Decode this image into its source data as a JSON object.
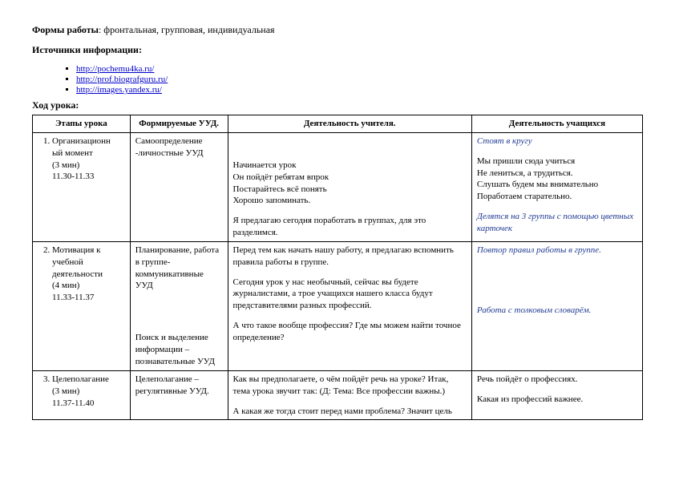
{
  "header": {
    "forms_label": "Формы работы",
    "forms_value": ": фронтальная, групповая, индивидуальная",
    "sources_label": "Источники информации:",
    "links": [
      "http://pochemu4ka.ru/",
      "http://prof.biografguru.ru/",
      "http://images.yandex.ru/"
    ],
    "lesson_flow": "Ход урока:"
  },
  "table": {
    "headers": {
      "stage": "Этапы урока",
      "uud": "Формируемые УУД.",
      "teacher": "Деятельность учителя.",
      "students": "Деятельность учащихся"
    },
    "rows": [
      {
        "num": "1.",
        "stage_lines": [
          "Организационн",
          "ый момент",
          "(3 мин)",
          "11.30-11.33"
        ],
        "uud": "Самоопределение -личностные УУД",
        "teacher_block1": [
          "Начинается урок",
          "Он пойдёт ребятам впрок",
          "Постарайтесь  всё понять",
          "Хорошо запоминать."
        ],
        "teacher_block2": "Я предлагаю сегодня  поработать в группах, для это разделимся.",
        "students_italic1": "Стоят в кругу",
        "students_plain": [
          "Мы пришли сюда учиться",
          " Не лениться, а трудиться.",
          " Слушать будем мы   внимательно",
          " Поработаем   старательно."
        ],
        "students_italic2": "Делятся на 3 группы с помощью цветных карточек"
      },
      {
        "num": "2.",
        "stage_lines": [
          "Мотивация к",
          "учебной",
          "деятельности",
          "(4 мин)",
          "11.33-11.37"
        ],
        "uud_block1": "Планирование, работа в группе- коммуникативные УУД",
        "uud_block2": "Поиск и выделение информации – познавательные УУД",
        "teacher_block1": "Перед тем как начать нашу работу, я предлагаю вспомнить правила работы в группе.",
        "teacher_block2": "Сегодня урок у нас необычный, сейчас вы будете журналистами, а трое учащихся нашего класса будут представителями разных профессий.",
        "teacher_block3": "А что такое вообще профессия? Где мы можем найти точное определение?",
        "students_italic1": "Повтор правил работы в группе.",
        "students_italic2": "Работа с толковым словарём."
      },
      {
        "num": "3.",
        "stage_lines": [
          "Целеполагание",
          "(3 мин)",
          "11.37-11.40"
        ],
        "uud": "Целеполагание – регулятивные УУД.",
        "teacher_block1": "Как вы предполагаете, о чём пойдёт речь на уроке? Итак, тема урока звучит так: (Д: Тема: Все профессии важны.)",
        "teacher_block2": "А какая же тогда стоит перед нами проблема? Значит цель",
        "students_plain1": "Речь пойдёт о профессиях.",
        "students_plain2": "Какая  из профессий важнее."
      }
    ]
  }
}
